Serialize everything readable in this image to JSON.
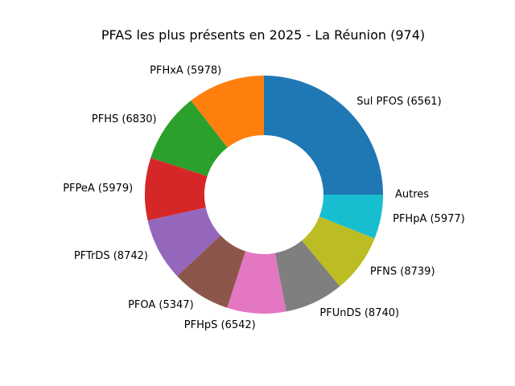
{
  "chart_data": {
    "type": "pie",
    "variant": "donut",
    "title": "PFAS les plus présents en 2025 - La Réunion (974)",
    "start_angle_deg": 0,
    "direction": "counterclockwise",
    "slices": [
      {
        "label": "Sul PFOS (6561)",
        "value": 25.0,
        "color": "#1f77b4"
      },
      {
        "label": "PFHxA (5978)",
        "value": 10.5,
        "color": "#ff7f0e"
      },
      {
        "label": "PFHS (6830)",
        "value": 9.5,
        "color": "#2ca02c"
      },
      {
        "label": "PFPeA (5979)",
        "value": 8.5,
        "color": "#d62728"
      },
      {
        "label": "PFTrDS (8742)",
        "value": 8.5,
        "color": "#9467bd"
      },
      {
        "label": "PFOA (5347)",
        "value": 8.0,
        "color": "#8c564b"
      },
      {
        "label": "PFHpS (6542)",
        "value": 8.0,
        "color": "#e377c2"
      },
      {
        "label": "PFUnDS (8740)",
        "value": 8.0,
        "color": "#7f7f7f"
      },
      {
        "label": "PFNS (8739)",
        "value": 8.0,
        "color": "#bcbd22"
      },
      {
        "label": "PFHpA (5977)",
        "value": 6.0,
        "color": "#17becf"
      },
      {
        "label": "Autres",
        "value": 0.0,
        "color": "#1f77b4"
      }
    ]
  }
}
